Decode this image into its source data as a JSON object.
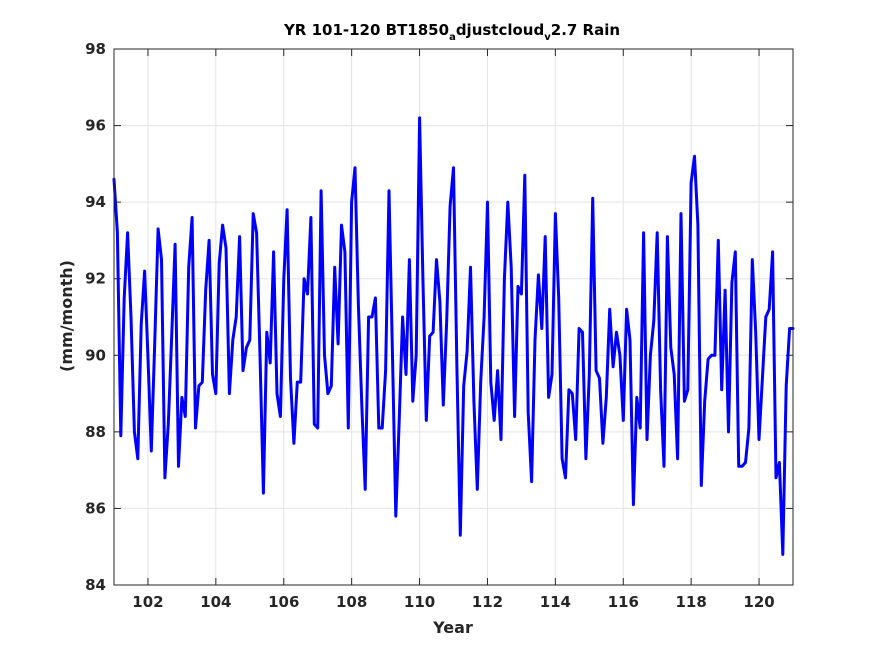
{
  "chart_data": {
    "type": "line",
    "title": {
      "part1": "YR 101-120 BT1850",
      "sub1": "a",
      "part2": "djustcloud",
      "sub2": "v",
      "part3": "2.7 Rain"
    },
    "xlabel": "Year",
    "ylabel": "(mm/month)",
    "xlim": [
      101,
      121
    ],
    "ylim": [
      84,
      98
    ],
    "xticks": [
      102,
      104,
      106,
      108,
      110,
      112,
      114,
      116,
      118,
      120
    ],
    "yticks": [
      84,
      86,
      88,
      90,
      92,
      94,
      96,
      98
    ],
    "grid": true,
    "series": [
      {
        "color": "#0000ff",
        "x": [
          101.0,
          101.1,
          101.2,
          101.3,
          101.4,
          101.5,
          101.6,
          101.7,
          101.8,
          101.9,
          102.0,
          102.1,
          102.2,
          102.3,
          102.4,
          102.5,
          102.6,
          102.7,
          102.8,
          102.9,
          103.0,
          103.1,
          103.2,
          103.3,
          103.4,
          103.5,
          103.6,
          103.7,
          103.8,
          103.9,
          104.0,
          104.1,
          104.2,
          104.3,
          104.4,
          104.5,
          104.6,
          104.7,
          104.8,
          104.9,
          105.0,
          105.1,
          105.2,
          105.3,
          105.4,
          105.5,
          105.6,
          105.7,
          105.8,
          105.9,
          106.0,
          106.1,
          106.2,
          106.3,
          106.4,
          106.5,
          106.6,
          106.7,
          106.8,
          106.9,
          107.0,
          107.1,
          107.2,
          107.3,
          107.4,
          107.5,
          107.6,
          107.7,
          107.8,
          107.9,
          108.0,
          108.1,
          108.2,
          108.3,
          108.4,
          108.5,
          108.6,
          108.7,
          108.8,
          108.9,
          109.0,
          109.1,
          109.2,
          109.3,
          109.4,
          109.5,
          109.6,
          109.7,
          109.8,
          109.9,
          110.0,
          110.1,
          110.2,
          110.3,
          110.4,
          110.5,
          110.6,
          110.7,
          110.8,
          110.9,
          111.0,
          111.1,
          111.2,
          111.3,
          111.4,
          111.5,
          111.6,
          111.7,
          111.8,
          111.9,
          112.0,
          112.1,
          112.2,
          112.3,
          112.4,
          112.5,
          112.6,
          112.7,
          112.8,
          112.9,
          113.0,
          113.1,
          113.2,
          113.3,
          113.4,
          113.5,
          113.6,
          113.7,
          113.8,
          113.9,
          114.0,
          114.1,
          114.2,
          114.3,
          114.4,
          114.5,
          114.6,
          114.7,
          114.8,
          114.9,
          115.0,
          115.1,
          115.2,
          115.3,
          115.4,
          115.5,
          115.6,
          115.7,
          115.8,
          115.9,
          116.0,
          116.1,
          116.2,
          116.3,
          116.4,
          116.5,
          116.6,
          116.7,
          116.8,
          116.9,
          117.0,
          117.1,
          117.2,
          117.3,
          117.4,
          117.5,
          117.6,
          117.7,
          117.8,
          117.9,
          118.0,
          118.1,
          118.2,
          118.3,
          118.4,
          118.5,
          118.6,
          118.7,
          118.8,
          118.9,
          119.0,
          119.1,
          119.2,
          119.3,
          119.4,
          119.5,
          119.6,
          119.7,
          119.8,
          119.9,
          120.0,
          120.1,
          120.2,
          120.3,
          120.4,
          120.5,
          120.6,
          120.7,
          120.8,
          120.9,
          121.0
        ],
        "y": [
          94.6,
          93.2,
          87.9,
          91.5,
          93.2,
          91.0,
          88.0,
          87.3,
          90.8,
          92.2,
          90.0,
          87.5,
          90.3,
          93.3,
          92.5,
          86.8,
          88.2,
          90.5,
          92.9,
          87.1,
          88.9,
          88.4,
          92.3,
          93.6,
          88.1,
          89.2,
          89.3,
          91.7,
          93.0,
          89.5,
          89.0,
          92.4,
          93.4,
          92.8,
          89.0,
          90.4,
          91.0,
          93.1,
          89.6,
          90.2,
          90.4,
          93.7,
          93.2,
          90.0,
          86.4,
          90.6,
          89.8,
          92.7,
          89.0,
          88.4,
          92.0,
          93.8,
          89.4,
          87.7,
          89.3,
          89.3,
          92.0,
          91.6,
          93.6,
          88.2,
          88.1,
          94.3,
          90.0,
          89.0,
          89.2,
          92.3,
          90.3,
          93.4,
          92.7,
          88.1,
          94.0,
          94.9,
          91.3,
          88.7,
          86.5,
          91.0,
          91.0,
          91.5,
          88.1,
          88.1,
          89.6,
          94.3,
          90.1,
          85.8,
          88.3,
          91.0,
          89.5,
          92.5,
          88.8,
          90.0,
          96.2,
          92.0,
          88.3,
          90.5,
          90.6,
          92.5,
          91.4,
          88.7,
          90.9,
          93.9,
          94.9,
          89.7,
          85.3,
          89.2,
          90.1,
          92.3,
          88.8,
          86.5,
          89.3,
          91.0,
          94.0,
          89.3,
          88.3,
          89.6,
          87.8,
          92.0,
          94.0,
          92.3,
          88.4,
          91.8,
          91.6,
          94.7,
          88.5,
          86.7,
          90.4,
          92.1,
          90.7,
          93.1,
          88.9,
          89.5,
          93.7,
          91.5,
          87.3,
          86.8,
          89.1,
          89.0,
          87.8,
          90.7,
          90.6,
          87.3,
          89.5,
          94.1,
          89.6,
          89.4,
          87.7,
          88.9,
          91.2,
          89.7,
          90.6,
          90.0,
          88.3,
          91.2,
          90.4,
          86.1,
          88.9,
          88.1,
          93.2,
          87.8,
          90.0,
          90.9,
          93.2,
          89.1,
          87.1,
          93.1,
          90.2,
          89.5,
          87.3,
          93.7,
          88.8,
          89.1,
          94.5,
          95.2,
          93.4,
          86.6,
          88.8,
          89.9,
          90.0,
          90.0,
          93.0,
          89.1,
          91.7,
          88.0,
          91.9,
          92.7,
          87.1,
          87.1,
          87.2,
          88.1,
          92.5,
          90.6,
          87.8,
          89.4,
          91.0,
          91.2,
          92.7,
          86.8,
          87.2,
          84.8,
          89.2,
          90.7,
          90.7
        ]
      }
    ]
  }
}
